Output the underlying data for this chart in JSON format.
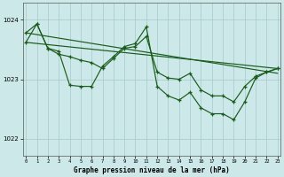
{
  "title": "Graphe pression niveau de la mer (hPa)",
  "bg_color": "#cce8e8",
  "grid_color": "#aacece",
  "line_color": "#1a5c1a",
  "x_ticks": [
    0,
    1,
    2,
    3,
    4,
    5,
    6,
    7,
    8,
    9,
    10,
    11,
    12,
    13,
    14,
    15,
    16,
    17,
    18,
    19,
    20,
    21,
    22,
    23
  ],
  "y_ticks": [
    1022,
    1023,
    1024
  ],
  "ylim": [
    1021.72,
    1024.28
  ],
  "xlim": [
    -0.3,
    23.3
  ],
  "trend1_x": [
    0,
    23
  ],
  "trend1_y": [
    1023.78,
    1023.1
  ],
  "trend2_x": [
    0,
    23
  ],
  "trend2_y": [
    1023.62,
    1023.18
  ],
  "jagged1_x": [
    0,
    1,
    2,
    3,
    4,
    5,
    6,
    7,
    8,
    9,
    10,
    11,
    12,
    13,
    14,
    15,
    16,
    17,
    18,
    19,
    20,
    21,
    22,
    23
  ],
  "jagged1_y": [
    1023.78,
    1023.93,
    1023.52,
    1023.47,
    1022.9,
    1022.88,
    1022.88,
    1023.22,
    1023.38,
    1023.55,
    1023.6,
    1023.88,
    1022.88,
    1022.72,
    1022.65,
    1022.78,
    1022.52,
    1022.42,
    1022.42,
    1022.32,
    1022.62,
    1023.02,
    1023.12,
    1023.18
  ],
  "jagged2_x": [
    0,
    1,
    2,
    3,
    4,
    5,
    6,
    7,
    8,
    9,
    10,
    11,
    12,
    13,
    14,
    15,
    16,
    17,
    18,
    19,
    20,
    21,
    22,
    23
  ],
  "jagged2_y": [
    1023.62,
    1023.93,
    1023.52,
    1023.42,
    1023.38,
    1023.32,
    1023.28,
    1023.18,
    1023.35,
    1023.52,
    1023.55,
    1023.72,
    1023.12,
    1023.02,
    1023.0,
    1023.1,
    1022.82,
    1022.72,
    1022.72,
    1022.62,
    1022.88,
    1023.05,
    1023.12,
    1023.18
  ]
}
